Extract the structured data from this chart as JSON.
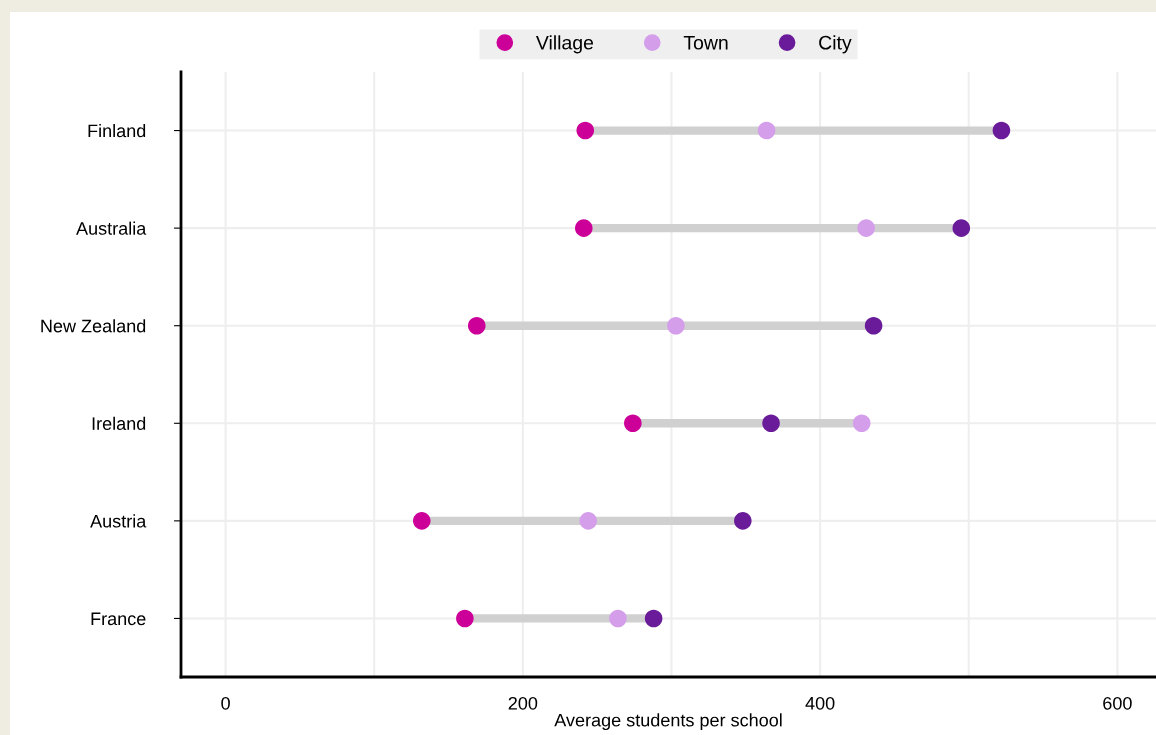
{
  "chart_data": {
    "type": "scatter",
    "orientation": "horizontal",
    "xlabel": "Average students per school",
    "categories": [
      "Finland",
      "Australia",
      "New Zealand",
      "Ireland",
      "Austria",
      "France"
    ],
    "series": [
      {
        "name": "Village",
        "color": "#cc0099",
        "values": [
          242,
          241,
          169,
          274,
          132,
          161
        ]
      },
      {
        "name": "Town",
        "color": "#d49eeb",
        "values": [
          364,
          431,
          303,
          428,
          244,
          264
        ]
      },
      {
        "name": "City",
        "color": "#6a1b9a",
        "values": [
          522,
          495,
          436,
          367,
          348,
          288
        ]
      }
    ],
    "xlim": [
      -30,
      626
    ],
    "xticks": [
      0,
      {
        "value": 100,
        "label": null
      },
      200,
      {
        "value": 300,
        "label": null
      },
      400,
      {
        "value": 500,
        "label": null
      },
      600
    ],
    "grid": true,
    "legend": "top",
    "marker": "circle"
  }
}
